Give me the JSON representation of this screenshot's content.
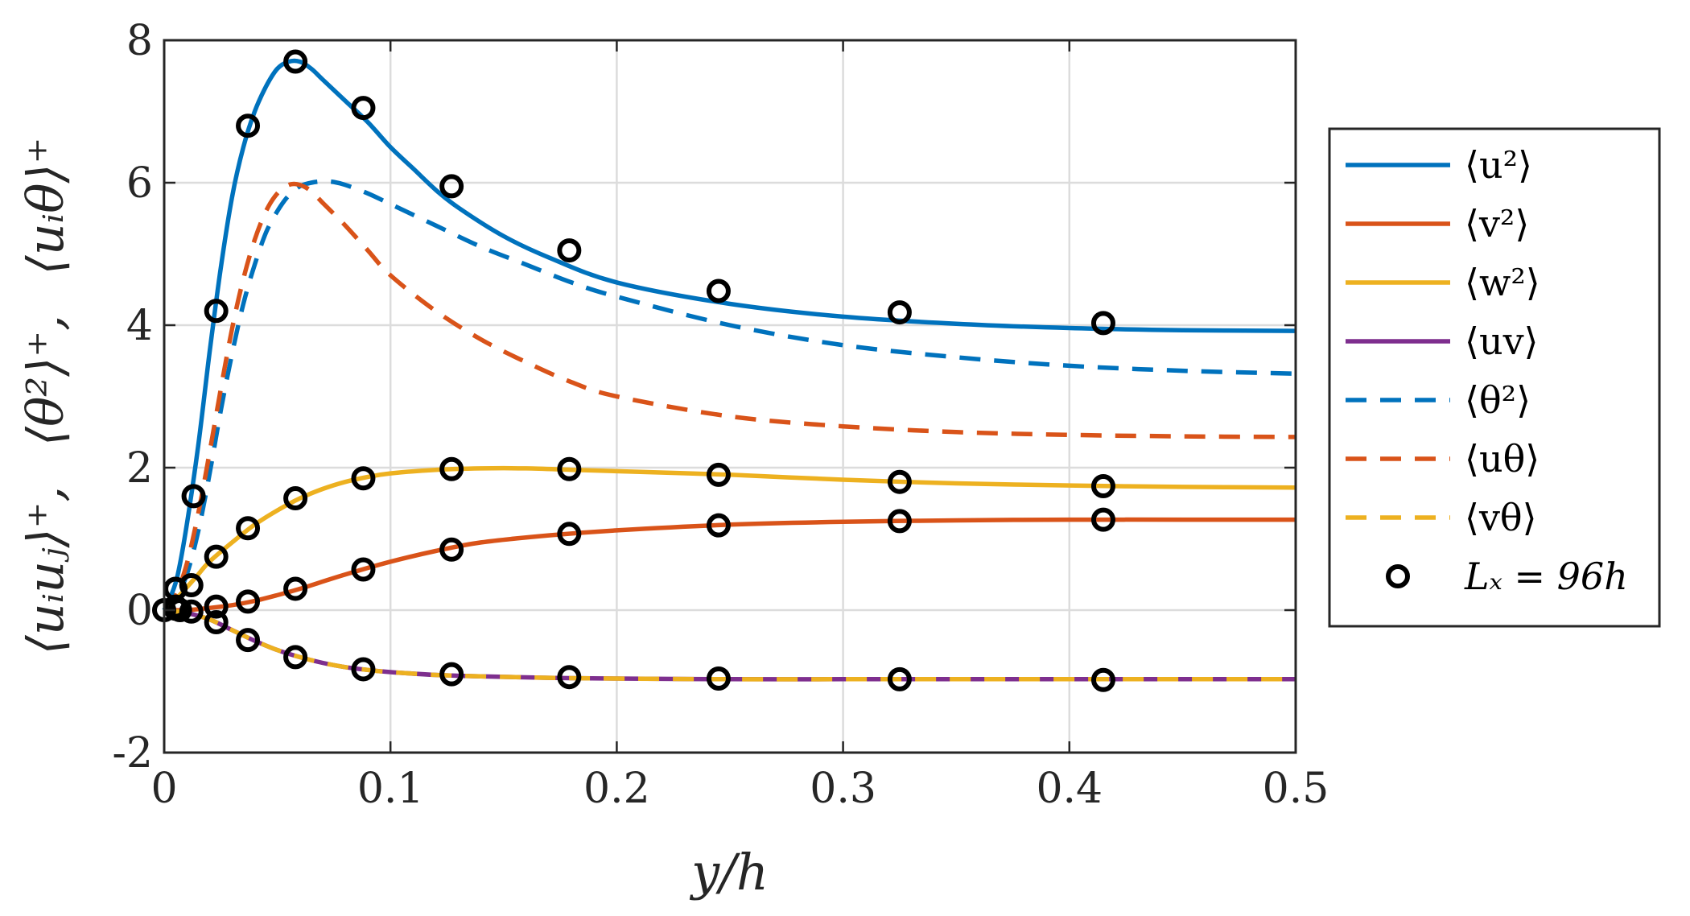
{
  "chart_data": {
    "type": "line",
    "xlabel": "y/h",
    "ylabel": [
      "⟨uᵢuⱼ⟩⁺,",
      "⟨θ²⟩⁺,",
      "⟨uᵢθ⟩⁺"
    ],
    "xlim": [
      0,
      0.5
    ],
    "ylim": [
      -2,
      8
    ],
    "xticks": [
      0,
      0.1,
      0.2,
      0.3,
      0.4,
      0.5
    ],
    "xtick_labels": [
      "0",
      "0.1",
      "0.2",
      "0.3",
      "0.4",
      "0.5"
    ],
    "yticks": [
      -2,
      0,
      2,
      4,
      6,
      8
    ],
    "ytick_labels": [
      "-2",
      "0",
      "2",
      "4",
      "6",
      "8"
    ],
    "grid": true,
    "legend_position": "outside-right",
    "series": [
      {
        "name": "⟨u²⟩",
        "color": "#0072BD",
        "dash": "solid",
        "x": [
          0,
          0.003,
          0.006,
          0.01,
          0.015,
          0.02,
          0.025,
          0.03,
          0.035,
          0.04,
          0.045,
          0.05,
          0.055,
          0.06,
          0.065,
          0.07,
          0.08,
          0.09,
          0.1,
          0.11,
          0.12,
          0.13,
          0.15,
          0.17,
          0.2,
          0.25,
          0.3,
          0.35,
          0.4,
          0.45,
          0.5
        ],
        "y": [
          0,
          0.2,
          0.5,
          1.2,
          2.3,
          3.6,
          4.8,
          5.8,
          6.5,
          7.0,
          7.35,
          7.6,
          7.7,
          7.7,
          7.6,
          7.45,
          7.15,
          6.85,
          6.5,
          6.2,
          5.9,
          5.65,
          5.25,
          4.95,
          4.6,
          4.3,
          4.12,
          4.02,
          3.96,
          3.93,
          3.92
        ]
      },
      {
        "name": "⟨v²⟩",
        "color": "#D95319",
        "dash": "solid",
        "x": [
          0,
          0.01,
          0.02,
          0.03,
          0.04,
          0.05,
          0.06,
          0.08,
          0.1,
          0.12,
          0.14,
          0.17,
          0.2,
          0.25,
          0.3,
          0.35,
          0.4,
          0.45,
          0.5
        ],
        "y": [
          0,
          0.0,
          0.03,
          0.07,
          0.13,
          0.21,
          0.3,
          0.5,
          0.68,
          0.83,
          0.95,
          1.05,
          1.12,
          1.2,
          1.24,
          1.26,
          1.27,
          1.27,
          1.27
        ]
      },
      {
        "name": "⟨w²⟩",
        "color": "#EDB120",
        "dash": "solid",
        "x": [
          0,
          0.005,
          0.01,
          0.015,
          0.02,
          0.03,
          0.04,
          0.05,
          0.06,
          0.07,
          0.08,
          0.09,
          0.1,
          0.12,
          0.14,
          0.16,
          0.18,
          0.2,
          0.25,
          0.3,
          0.35,
          0.4,
          0.45,
          0.5
        ],
        "y": [
          0,
          0.15,
          0.32,
          0.5,
          0.68,
          0.95,
          1.2,
          1.4,
          1.57,
          1.7,
          1.8,
          1.87,
          1.92,
          1.97,
          1.99,
          1.99,
          1.97,
          1.95,
          1.9,
          1.83,
          1.78,
          1.75,
          1.73,
          1.72
        ]
      },
      {
        "name": "⟨uv⟩",
        "color": "#7E2F8E",
        "dash": "solid",
        "x": [
          0,
          0.01,
          0.02,
          0.03,
          0.04,
          0.05,
          0.06,
          0.07,
          0.08,
          0.09,
          0.1,
          0.12,
          0.14,
          0.17,
          0.2,
          0.25,
          0.3,
          0.35,
          0.4,
          0.45,
          0.5
        ],
        "y": [
          0,
          -0.04,
          -0.13,
          -0.28,
          -0.43,
          -0.56,
          -0.66,
          -0.74,
          -0.8,
          -0.84,
          -0.87,
          -0.91,
          -0.93,
          -0.95,
          -0.96,
          -0.97,
          -0.97,
          -0.97,
          -0.97,
          -0.97,
          -0.97
        ]
      },
      {
        "name": "⟨θ²⟩",
        "color": "#0072BD",
        "dash": "dashed",
        "x": [
          0,
          0.005,
          0.01,
          0.015,
          0.02,
          0.025,
          0.03,
          0.035,
          0.04,
          0.045,
          0.05,
          0.055,
          0.06,
          0.065,
          0.07,
          0.075,
          0.08,
          0.09,
          0.1,
          0.12,
          0.14,
          0.16,
          0.18,
          0.2,
          0.25,
          0.3,
          0.35,
          0.4,
          0.45,
          0.5
        ],
        "y": [
          0,
          0.15,
          0.5,
          1.1,
          1.9,
          2.8,
          3.6,
          4.3,
          4.85,
          5.3,
          5.6,
          5.82,
          5.95,
          6.0,
          6.02,
          6.01,
          5.97,
          5.85,
          5.7,
          5.4,
          5.1,
          4.85,
          4.6,
          4.4,
          4.0,
          3.72,
          3.55,
          3.43,
          3.36,
          3.32
        ]
      },
      {
        "name": "⟨uθ⟩",
        "color": "#D95319",
        "dash": "dashed",
        "x": [
          0,
          0.005,
          0.01,
          0.015,
          0.02,
          0.025,
          0.03,
          0.035,
          0.04,
          0.045,
          0.05,
          0.055,
          0.06,
          0.065,
          0.07,
          0.08,
          0.09,
          0.1,
          0.12,
          0.14,
          0.16,
          0.18,
          0.2,
          0.25,
          0.3,
          0.35,
          0.4,
          0.45,
          0.5
        ],
        "y": [
          0,
          0.2,
          0.65,
          1.35,
          2.2,
          3.1,
          3.95,
          4.65,
          5.2,
          5.6,
          5.85,
          5.97,
          5.97,
          5.88,
          5.72,
          5.4,
          5.05,
          4.7,
          4.2,
          3.8,
          3.48,
          3.2,
          3.0,
          2.72,
          2.58,
          2.5,
          2.46,
          2.44,
          2.43
        ]
      },
      {
        "name": "⟨vθ⟩",
        "color": "#EDB120",
        "dash": "dashed",
        "x": [
          0,
          0.01,
          0.02,
          0.03,
          0.04,
          0.05,
          0.06,
          0.07,
          0.08,
          0.09,
          0.1,
          0.12,
          0.14,
          0.17,
          0.2,
          0.25,
          0.3,
          0.35,
          0.4,
          0.45,
          0.5
        ],
        "y": [
          0,
          -0.04,
          -0.13,
          -0.28,
          -0.43,
          -0.56,
          -0.66,
          -0.74,
          -0.8,
          -0.84,
          -0.87,
          -0.91,
          -0.93,
          -0.95,
          -0.96,
          -0.97,
          -0.97,
          -0.97,
          -0.97,
          -0.97,
          -0.97
        ]
      }
    ],
    "markers": {
      "name": "L_x = 96h",
      "legend_text": "Lₓ = 96h",
      "color": "#000000",
      "style": "open-circle",
      "points": [
        {
          "x": 0.0,
          "y": 0.0
        },
        {
          "x": 0.005,
          "y": 0.3
        },
        {
          "x": 0.005,
          "y": 0.05
        },
        {
          "x": 0.005,
          "y": 0.02
        },
        {
          "x": 0.007,
          "y": 0.0
        },
        {
          "x": 0.012,
          "y": 0.35
        },
        {
          "x": 0.012,
          "y": -0.02
        },
        {
          "x": 0.013,
          "y": 1.6
        },
        {
          "x": 0.023,
          "y": 4.2
        },
        {
          "x": 0.023,
          "y": 0.75
        },
        {
          "x": 0.023,
          "y": 0.05
        },
        {
          "x": 0.023,
          "y": -0.17
        },
        {
          "x": 0.037,
          "y": 6.8
        },
        {
          "x": 0.037,
          "y": 1.15
        },
        {
          "x": 0.037,
          "y": 0.12
        },
        {
          "x": 0.037,
          "y": -0.42
        },
        {
          "x": 0.058,
          "y": 7.7
        },
        {
          "x": 0.058,
          "y": 1.57
        },
        {
          "x": 0.058,
          "y": 0.3
        },
        {
          "x": 0.058,
          "y": -0.66
        },
        {
          "x": 0.088,
          "y": 7.05
        },
        {
          "x": 0.088,
          "y": 1.85
        },
        {
          "x": 0.088,
          "y": 0.57
        },
        {
          "x": 0.088,
          "y": -0.83
        },
        {
          "x": 0.127,
          "y": 5.95
        },
        {
          "x": 0.127,
          "y": 1.98
        },
        {
          "x": 0.127,
          "y": 0.85
        },
        {
          "x": 0.127,
          "y": -0.9
        },
        {
          "x": 0.179,
          "y": 5.05
        },
        {
          "x": 0.179,
          "y": 1.98
        },
        {
          "x": 0.179,
          "y": 1.07
        },
        {
          "x": 0.179,
          "y": -0.94
        },
        {
          "x": 0.245,
          "y": 4.48
        },
        {
          "x": 0.245,
          "y": 1.9
        },
        {
          "x": 0.245,
          "y": 1.19
        },
        {
          "x": 0.245,
          "y": -0.96
        },
        {
          "x": 0.325,
          "y": 4.18
        },
        {
          "x": 0.325,
          "y": 1.8
        },
        {
          "x": 0.325,
          "y": 1.25
        },
        {
          "x": 0.325,
          "y": -0.97
        },
        {
          "x": 0.415,
          "y": 4.03
        },
        {
          "x": 0.415,
          "y": 1.74
        },
        {
          "x": 0.415,
          "y": 1.27
        },
        {
          "x": 0.415,
          "y": -0.98
        }
      ]
    }
  }
}
